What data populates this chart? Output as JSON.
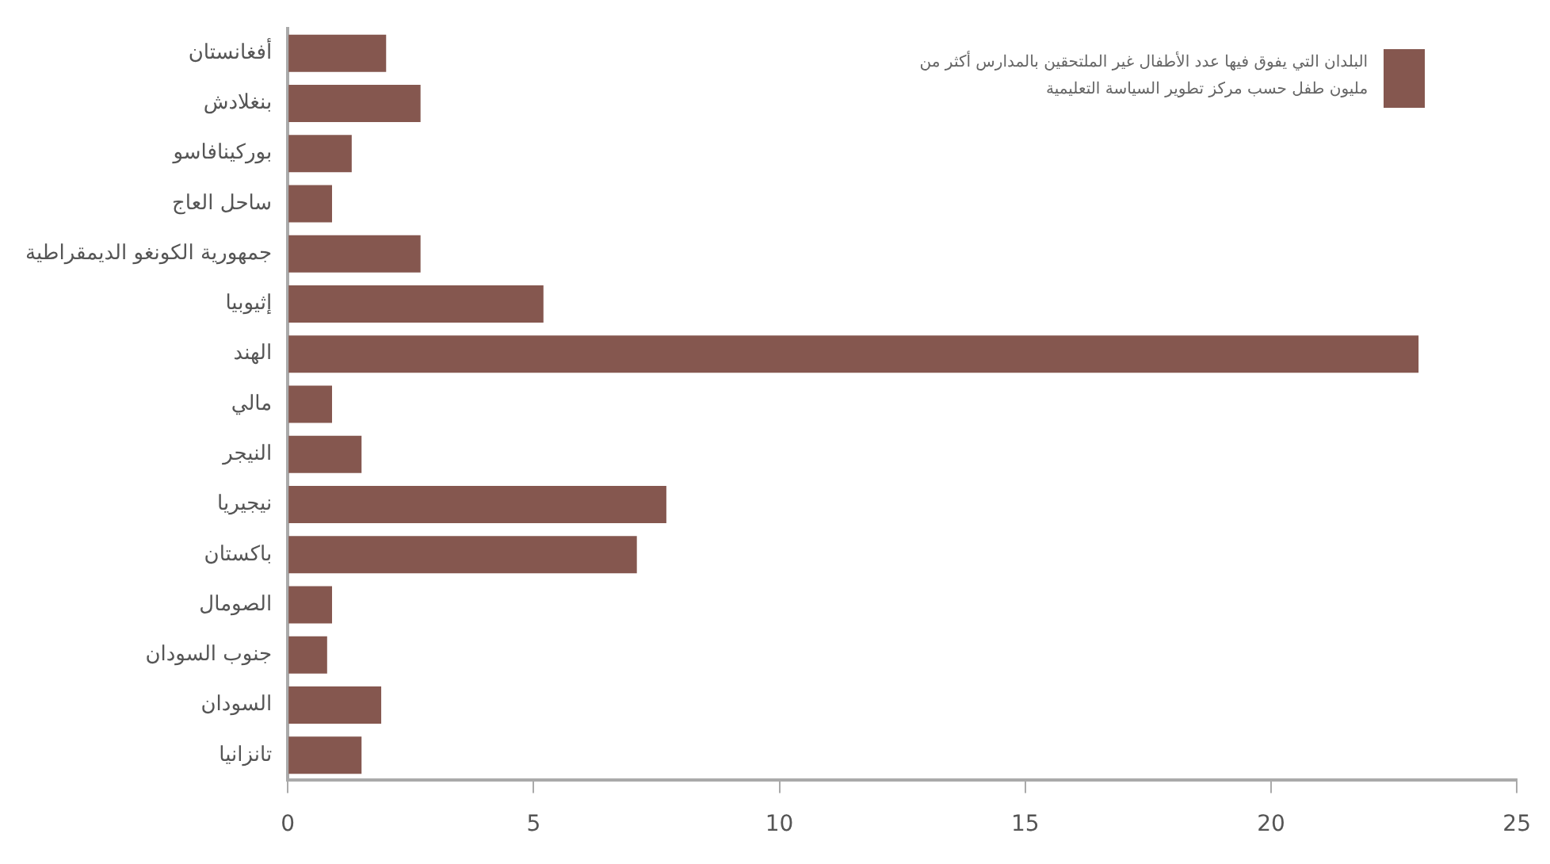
{
  "chart_data": {
    "type": "bar",
    "orientation": "horizontal",
    "categories": [
      "أفغانستان",
      "بنغلادش",
      "بوركينافاسو",
      "ساحل العاج",
      "جمهورية الكونغو الديمقراطية",
      "إثيوبيا",
      "الهند",
      "مالي",
      "النيجر",
      "نيجيريا",
      "باكستان",
      "الصومال",
      "جنوب السودان",
      "السودان",
      "تانزانيا"
    ],
    "series": [
      {
        "name": "البلدان التي يفوق فيها عدد الأطفال غير الملتحقين بالمدارس أكثر من مليون طفل حسب مركز تطوير السياسة التعليمية",
        "color": "#85574f",
        "values": [
          2.0,
          2.7,
          1.3,
          0.9,
          2.7,
          5.2,
          23,
          0.9,
          1.5,
          7.7,
          7.1,
          0.9,
          0.8,
          1.9,
          1.5
        ]
      }
    ],
    "xlim": [
      0,
      25
    ],
    "xticks": [
      0,
      5,
      10,
      15,
      20,
      25
    ],
    "grid": false,
    "legend": "top right"
  }
}
